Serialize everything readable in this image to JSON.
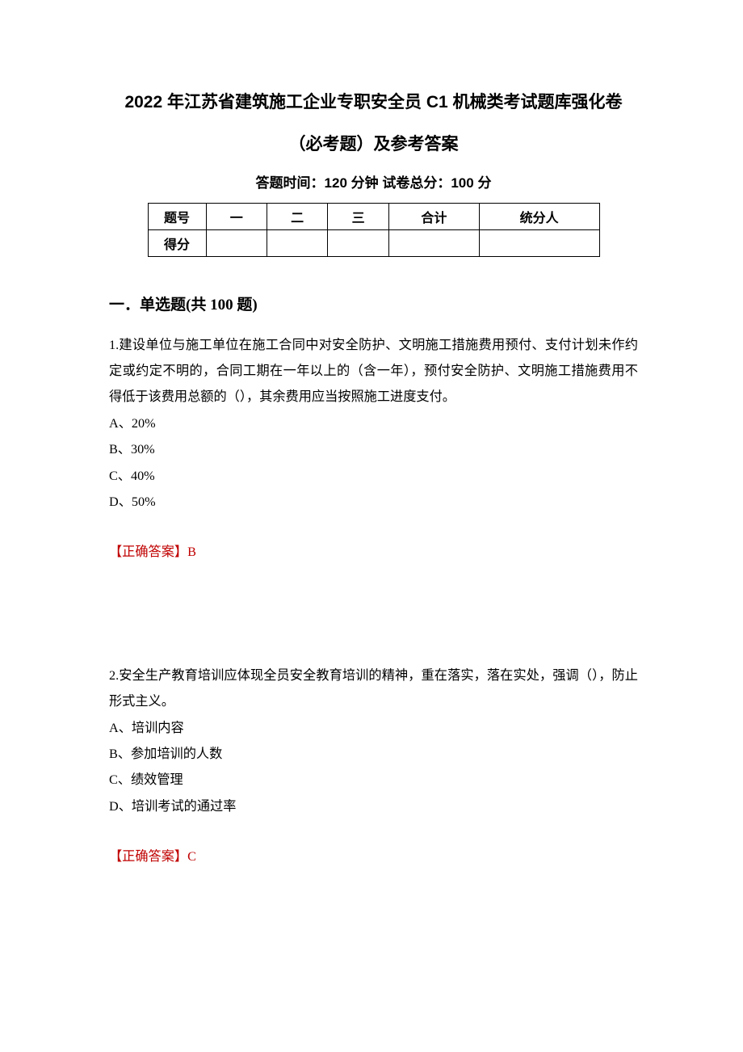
{
  "title": {
    "main": "2022 年江苏省建筑施工企业专职安全员 C1 机械类考试题库强化卷",
    "sub": "（必考题）及参考答案"
  },
  "exam_info": "答题时间：120 分钟   试卷总分：100 分",
  "score_table": {
    "headers": [
      "题号",
      "一",
      "二",
      "三",
      "合计",
      "统分人"
    ],
    "row_label": "得分"
  },
  "section": {
    "heading": "一．单选题(共 100 题)"
  },
  "questions": [
    {
      "text": "1.建设单位与施工单位在施工合同中对安全防护、文明施工措施费用预付、支付计划未作约定或约定不明的，合同工期在一年以上的（含一年），预付安全防护、文明施工措施费用不得低于该费用总额的（），其余费用应当按照施工进度支付。",
      "options": [
        "A、20%",
        "B、30%",
        "C、40%",
        "D、50%"
      ],
      "answer_label": "【正确答案】",
      "answer_value": "B"
    },
    {
      "text": "2.安全生产教育培训应体现全员安全教育培训的精神，重在落实，落在实处，强调（），防止形式主义。",
      "options": [
        "A、培训内容",
        "B、参加培训的人数",
        "C、绩效管理",
        "D、培训考试的通过率"
      ],
      "answer_label": "【正确答案】",
      "answer_value": "C"
    }
  ],
  "colors": {
    "text": "#000000",
    "answer": "#c00000",
    "background": "#ffffff",
    "border": "#000000"
  },
  "typography": {
    "title_fontsize": 21,
    "info_fontsize": 17,
    "section_fontsize": 19,
    "body_fontsize": 16.2,
    "line_height": 2.0
  }
}
